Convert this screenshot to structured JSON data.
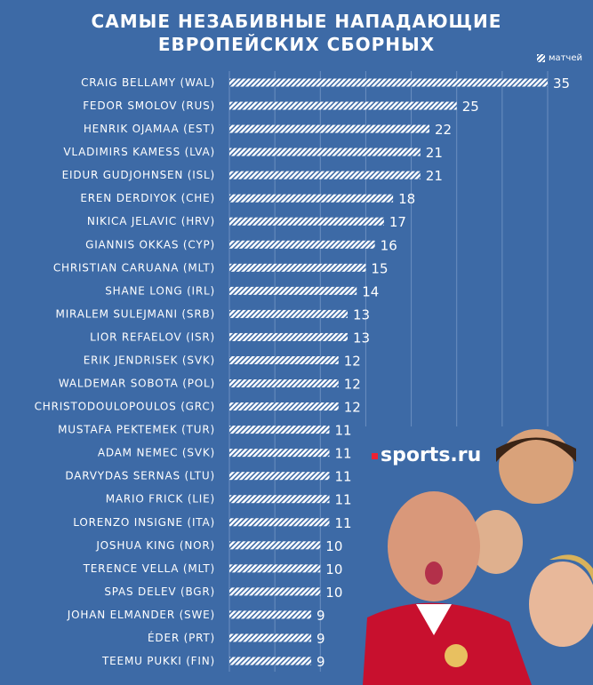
{
  "title_line1": "САМЫЕ НЕЗАБИВНЫЕ НАПАДАЮЩИЕ",
  "title_line2": "ЕВРОПЕЙСКИХ СБОРНЫХ",
  "logo_text": "sports.ru",
  "colors": {
    "background": "#3d6aa6",
    "bar": "#ffffff",
    "text": "#ffffff",
    "grid": "#6b8fc0"
  },
  "chart_data": {
    "type": "bar",
    "orientation": "horizontal",
    "title": "САМЫЕ НЕЗАБИВНЫЕ НАПАДАЮЩИЕ ЕВРОПЕЙСКИХ СБОРНЫХ",
    "legend": "матчей",
    "legend_position": "top-right",
    "grid": true,
    "xlim": [
      0,
      35
    ],
    "categories": [
      "CRAIG BELLAMY (WAL)",
      "FEDOR SMOLOV (RUS)",
      "HENRIK OJAMAA (EST)",
      "VLADIMIRS KAMESS (LVA)",
      "EIDUR GUDJOHNSEN (ISL)",
      "EREN DERDIYOK (CHE)",
      "NIKICA JELAVIC (HRV)",
      "GIANNIS OKKAS (CYP)",
      "CHRISTIAN CARUANA (MLT)",
      "SHANE LONG (IRL)",
      "MIRALEM SULEJMANI (SRB)",
      "LIOR REFAELOV (ISR)",
      "ERIK JENDRISEK (SVK)",
      "WALDEMAR SOBOTA (POL)",
      "CHRISTODOULOPOULOS (GRC)",
      "MUSTAFA PEKTEMEK (TUR)",
      "ADAM NEMEC (SVK)",
      "DARVYDAS SERNAS (LTU)",
      "MARIO FRICK (LIE)",
      "LORENZO INSIGNE (ITA)",
      "JOSHUA KING (NOR)",
      "TERENCE VELLA (MLT)",
      "SPAS DELEV (BGR)",
      "JOHAN ELMANDER (SWE)",
      "ÉDER (PRT)",
      "TEEMU PUKKI (FIN)"
    ],
    "values": [
      35,
      25,
      22,
      21,
      21,
      18,
      17,
      16,
      15,
      14,
      13,
      13,
      12,
      12,
      12,
      11,
      11,
      11,
      11,
      11,
      10,
      10,
      10,
      9,
      9,
      9
    ]
  }
}
